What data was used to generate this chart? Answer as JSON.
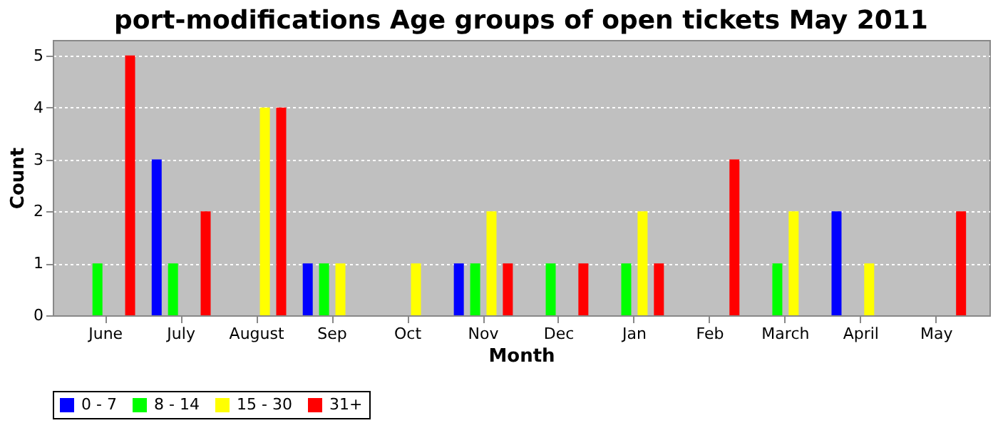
{
  "chart_data": {
    "type": "bar",
    "title": "port-modifications Age groups of open tickets May 2011",
    "xlabel": "Month",
    "ylabel": "Count",
    "categories": [
      "June",
      "July",
      "August",
      "Sep",
      "Oct",
      "Nov",
      "Dec",
      "Jan",
      "Feb",
      "March",
      "April",
      "May"
    ],
    "series": [
      {
        "name": "0 - 7",
        "color": "#0000ff",
        "values": [
          0,
          3,
          0,
          1,
          0,
          1,
          0,
          0,
          0,
          0,
          2,
          0
        ]
      },
      {
        "name": "8 - 14",
        "color": "#00ff00",
        "values": [
          1,
          1,
          0,
          1,
          0,
          1,
          1,
          1,
          0,
          1,
          0,
          0
        ]
      },
      {
        "name": "15 - 30",
        "color": "#ffff00",
        "values": [
          0,
          0,
          4,
          1,
          1,
          2,
          0,
          2,
          0,
          2,
          1,
          0
        ]
      },
      {
        "name": "31+",
        "color": "#ff0000",
        "values": [
          5,
          2,
          4,
          0,
          0,
          1,
          1,
          1,
          3,
          0,
          0,
          2
        ]
      }
    ],
    "ylim": [
      0,
      5.3
    ],
    "yticks": [
      0,
      1,
      2,
      3,
      4,
      5
    ],
    "grid": "y",
    "legend": "bottom"
  }
}
